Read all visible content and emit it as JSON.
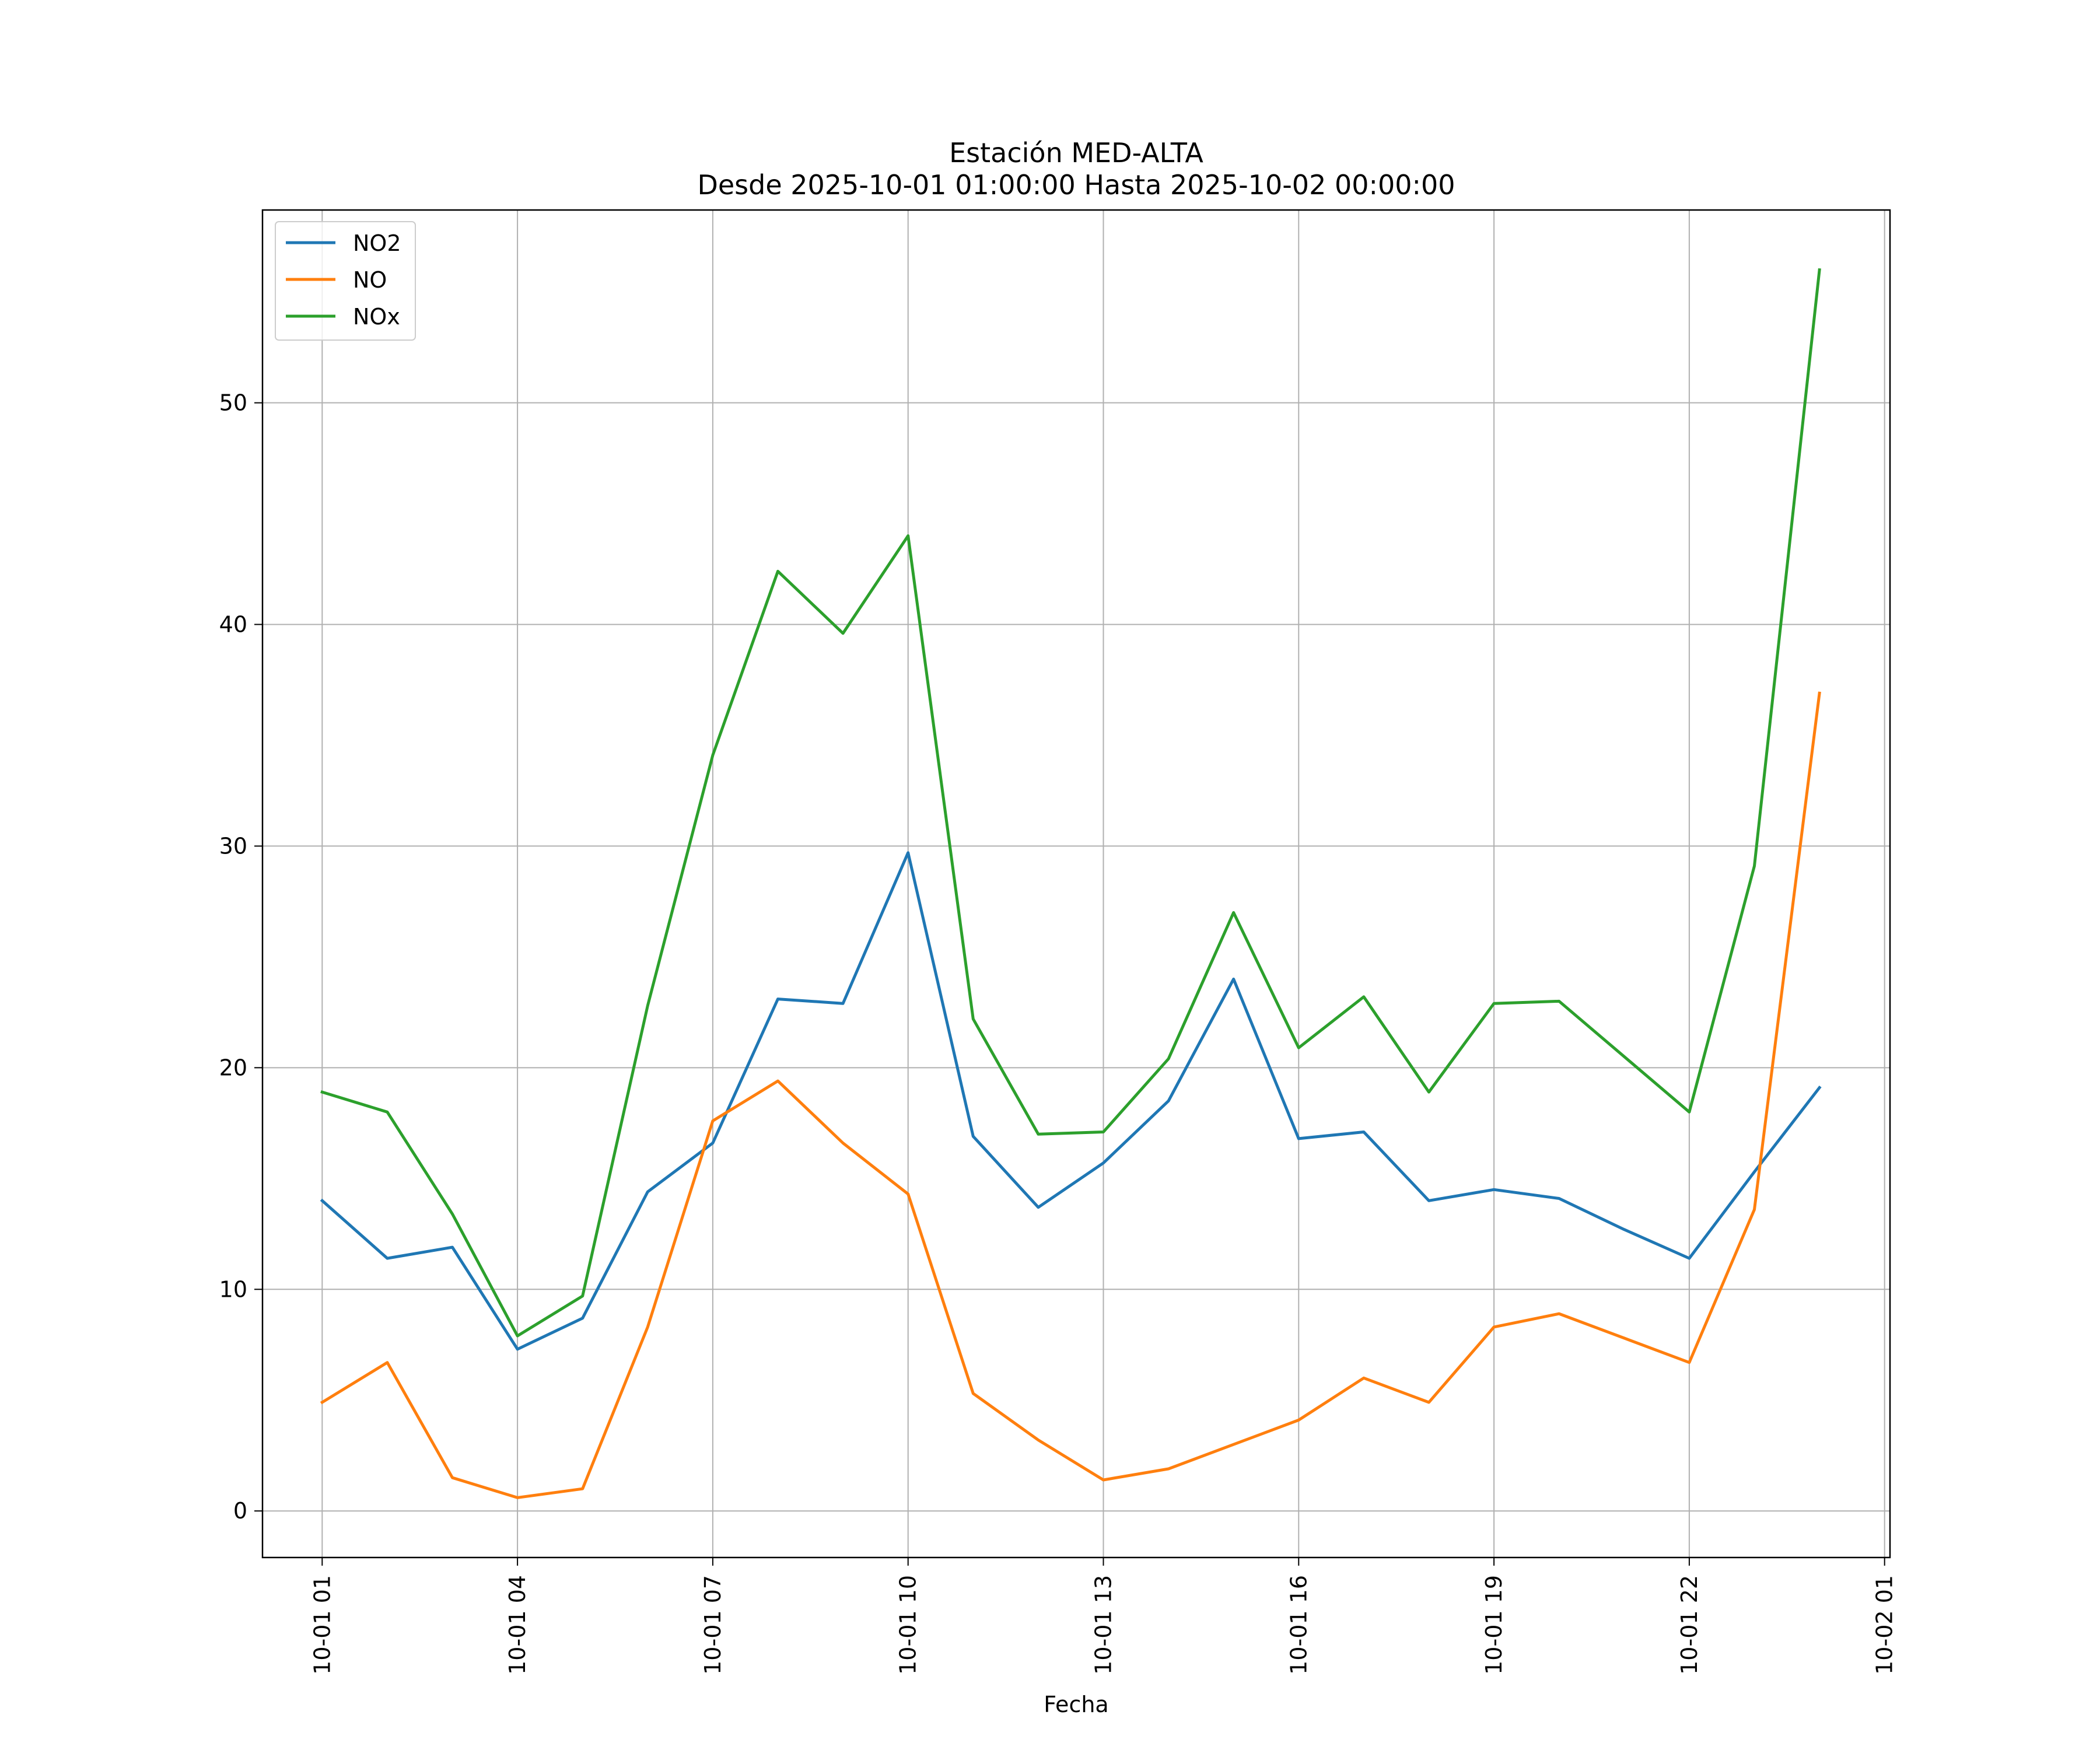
{
  "chart_data": {
    "type": "line",
    "title": "Estación MED-ALTA",
    "subtitle": "Desde 2025-10-01 01:00:00 Hasta 2025-10-02 00:00:00",
    "xlabel": "Fecha",
    "ylabel": "",
    "x": [
      "2025-10-01 01:00",
      "2025-10-01 02:00",
      "2025-10-01 03:00",
      "2025-10-01 04:00",
      "2025-10-01 05:00",
      "2025-10-01 06:00",
      "2025-10-01 07:00",
      "2025-10-01 08:00",
      "2025-10-01 09:00",
      "2025-10-01 10:00",
      "2025-10-01 11:00",
      "2025-10-01 12:00",
      "2025-10-01 13:00",
      "2025-10-01 14:00",
      "2025-10-01 15:00",
      "2025-10-01 16:00",
      "2025-10-01 17:00",
      "2025-10-01 18:00",
      "2025-10-01 19:00",
      "2025-10-01 20:00",
      "2025-10-01 21:00",
      "2025-10-01 22:00",
      "2025-10-01 23:00",
      "2025-10-02 00:00"
    ],
    "xlim": [
      "2025-10-01 00:05",
      "2025-10-02 01:05"
    ],
    "ylim": [
      -2.1,
      58.7
    ],
    "x_ticks": [
      "2025-10-01 01:00",
      "2025-10-01 04:00",
      "2025-10-01 07:00",
      "2025-10-01 10:00",
      "2025-10-01 13:00",
      "2025-10-01 16:00",
      "2025-10-01 19:00",
      "2025-10-01 22:00",
      "2025-10-02 01:00"
    ],
    "x_tick_labels": [
      "10-01 01",
      "10-01 04",
      "10-01 07",
      "10-01 10",
      "10-01 13",
      "10-01 16",
      "10-01 19",
      "10-01 22",
      "10-02 01"
    ],
    "y_ticks": [
      0,
      10,
      20,
      30,
      40,
      50
    ],
    "y_tick_labels": [
      "0",
      "10",
      "20",
      "30",
      "40",
      "50"
    ],
    "grid": true,
    "legend_position": "top-left",
    "series": [
      {
        "name": "NO2",
        "color": "#1f77b4",
        "values": [
          14.0,
          11.4,
          11.9,
          7.3,
          8.7,
          14.4,
          16.6,
          23.1,
          22.9,
          29.7,
          16.9,
          13.7,
          15.7,
          18.5,
          24.0,
          16.8,
          17.1,
          14.0,
          14.5,
          14.1,
          12.7,
          11.4,
          15.3,
          19.1
        ]
      },
      {
        "name": "NO",
        "color": "#ff7f0e",
        "values": [
          4.9,
          6.7,
          1.5,
          0.6,
          1.0,
          8.3,
          17.6,
          19.4,
          16.6,
          14.3,
          5.3,
          3.2,
          1.4,
          1.9,
          3.0,
          4.1,
          6.0,
          4.9,
          8.3,
          8.9,
          7.8,
          6.7,
          13.6,
          36.9
        ]
      },
      {
        "name": "NOx",
        "color": "#2ca02c",
        "values": [
          18.9,
          18.0,
          13.4,
          7.9,
          9.7,
          22.8,
          34.1,
          42.4,
          39.6,
          44.0,
          22.2,
          17.0,
          17.1,
          20.4,
          27.0,
          20.9,
          23.2,
          18.9,
          22.9,
          23.0,
          20.5,
          18.0,
          29.1,
          56.0
        ]
      }
    ]
  }
}
